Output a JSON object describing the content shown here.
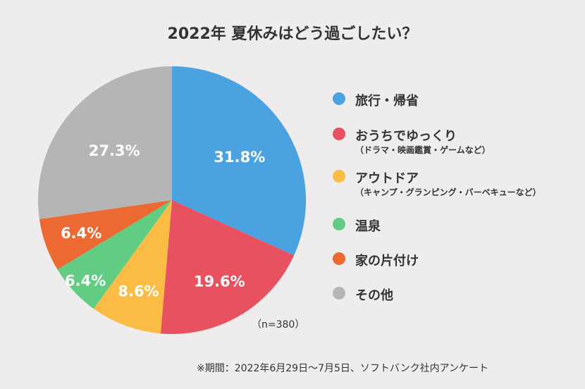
{
  "chart_data": {
    "type": "pie",
    "title": "2022年 夏休みはどう過ごしたい？",
    "start": "top",
    "direction": "clockwise",
    "slices": [
      {
        "label": "旅行・帰省",
        "sublabel": "",
        "value": 31.8,
        "value_label": "31.8%",
        "color": "#4aa3e0"
      },
      {
        "label": "おうちでゆっくり",
        "sublabel": "（ドラマ・映画鑑賞・ゲームなど）",
        "value": 19.6,
        "value_label": "19.6%",
        "color": "#e8515f"
      },
      {
        "label": "アウトドア",
        "sublabel": "（キャンプ・グランピング・バーベキューなど）",
        "value": 8.6,
        "value_label": "8.6%",
        "color": "#fbbc45"
      },
      {
        "label": "温泉",
        "sublabel": "",
        "value": 6.4,
        "value_label": "6.4%",
        "color": "#60cd83"
      },
      {
        "label": "家の片付け",
        "sublabel": "",
        "value": 6.4,
        "value_label": "6.4%",
        "color": "#ec6931"
      },
      {
        "label": "その他",
        "sublabel": "",
        "value": 27.3,
        "value_label": "27.3%",
        "color": "#b6b5b5"
      }
    ],
    "legend_position": "right",
    "sample_size": "（n=380）",
    "note": "※期間：2022年6月29日～7月5日、ソフトバンク社内アンケート"
  }
}
